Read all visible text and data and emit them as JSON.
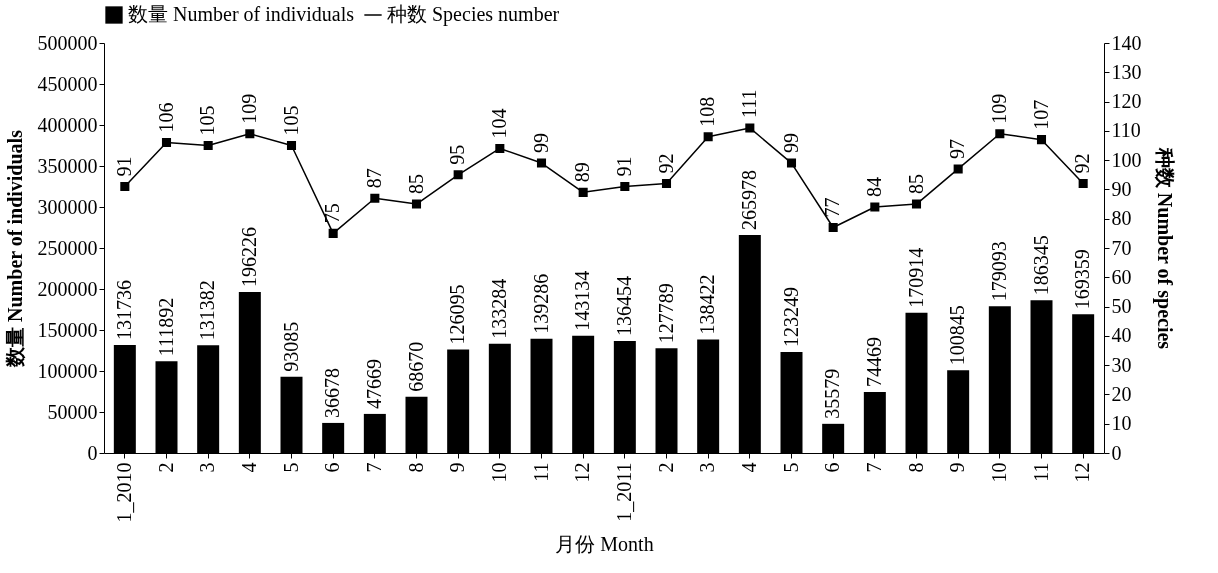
{
  "chart_data": {
    "type": "bar",
    "xlabel": "月份 Month",
    "ylabel": "数量 Number of individuals",
    "y2label": "种数 Number of species",
    "categories": [
      "1_2010",
      "2",
      "3",
      "4",
      "5",
      "6",
      "7",
      "8",
      "9",
      "10",
      "11",
      "12",
      "1_2011",
      "2",
      "3",
      "4",
      "5",
      "6",
      "7",
      "8",
      "9",
      "10",
      "11",
      "12"
    ],
    "series": [
      {
        "name": "数量 Number of individuals",
        "color": "#000000",
        "values": [
          131736,
          111892,
          131382,
          196226,
          93085,
          36678,
          47669,
          68670,
          126095,
          133284,
          139286,
          143134,
          136454,
          127789,
          138422,
          265978,
          123249,
          35579,
          74469,
          170914,
          100845,
          179093,
          186345,
          169359
        ]
      },
      {
        "name": "种数 Species number",
        "type": "line",
        "axis": "y2",
        "color": "#000000",
        "values": [
          91,
          106,
          105,
          109,
          105,
          75,
          87,
          85,
          95,
          104,
          99,
          89,
          91,
          92,
          108,
          111,
          99,
          77,
          84,
          85,
          97,
          109,
          107,
          92
        ]
      }
    ],
    "ylim": [
      0,
      500000
    ],
    "yticks": [
      0,
      50000,
      100000,
      150000,
      200000,
      250000,
      300000,
      350000,
      400000,
      450000,
      500000
    ],
    "y2lim": [
      0,
      140
    ],
    "y2ticks": [
      0,
      10,
      20,
      30,
      40,
      50,
      60,
      70,
      80,
      90,
      100,
      110,
      120,
      130,
      140
    ],
    "data_labels": true,
    "legend": "top",
    "marker": "square",
    "grid": false
  }
}
